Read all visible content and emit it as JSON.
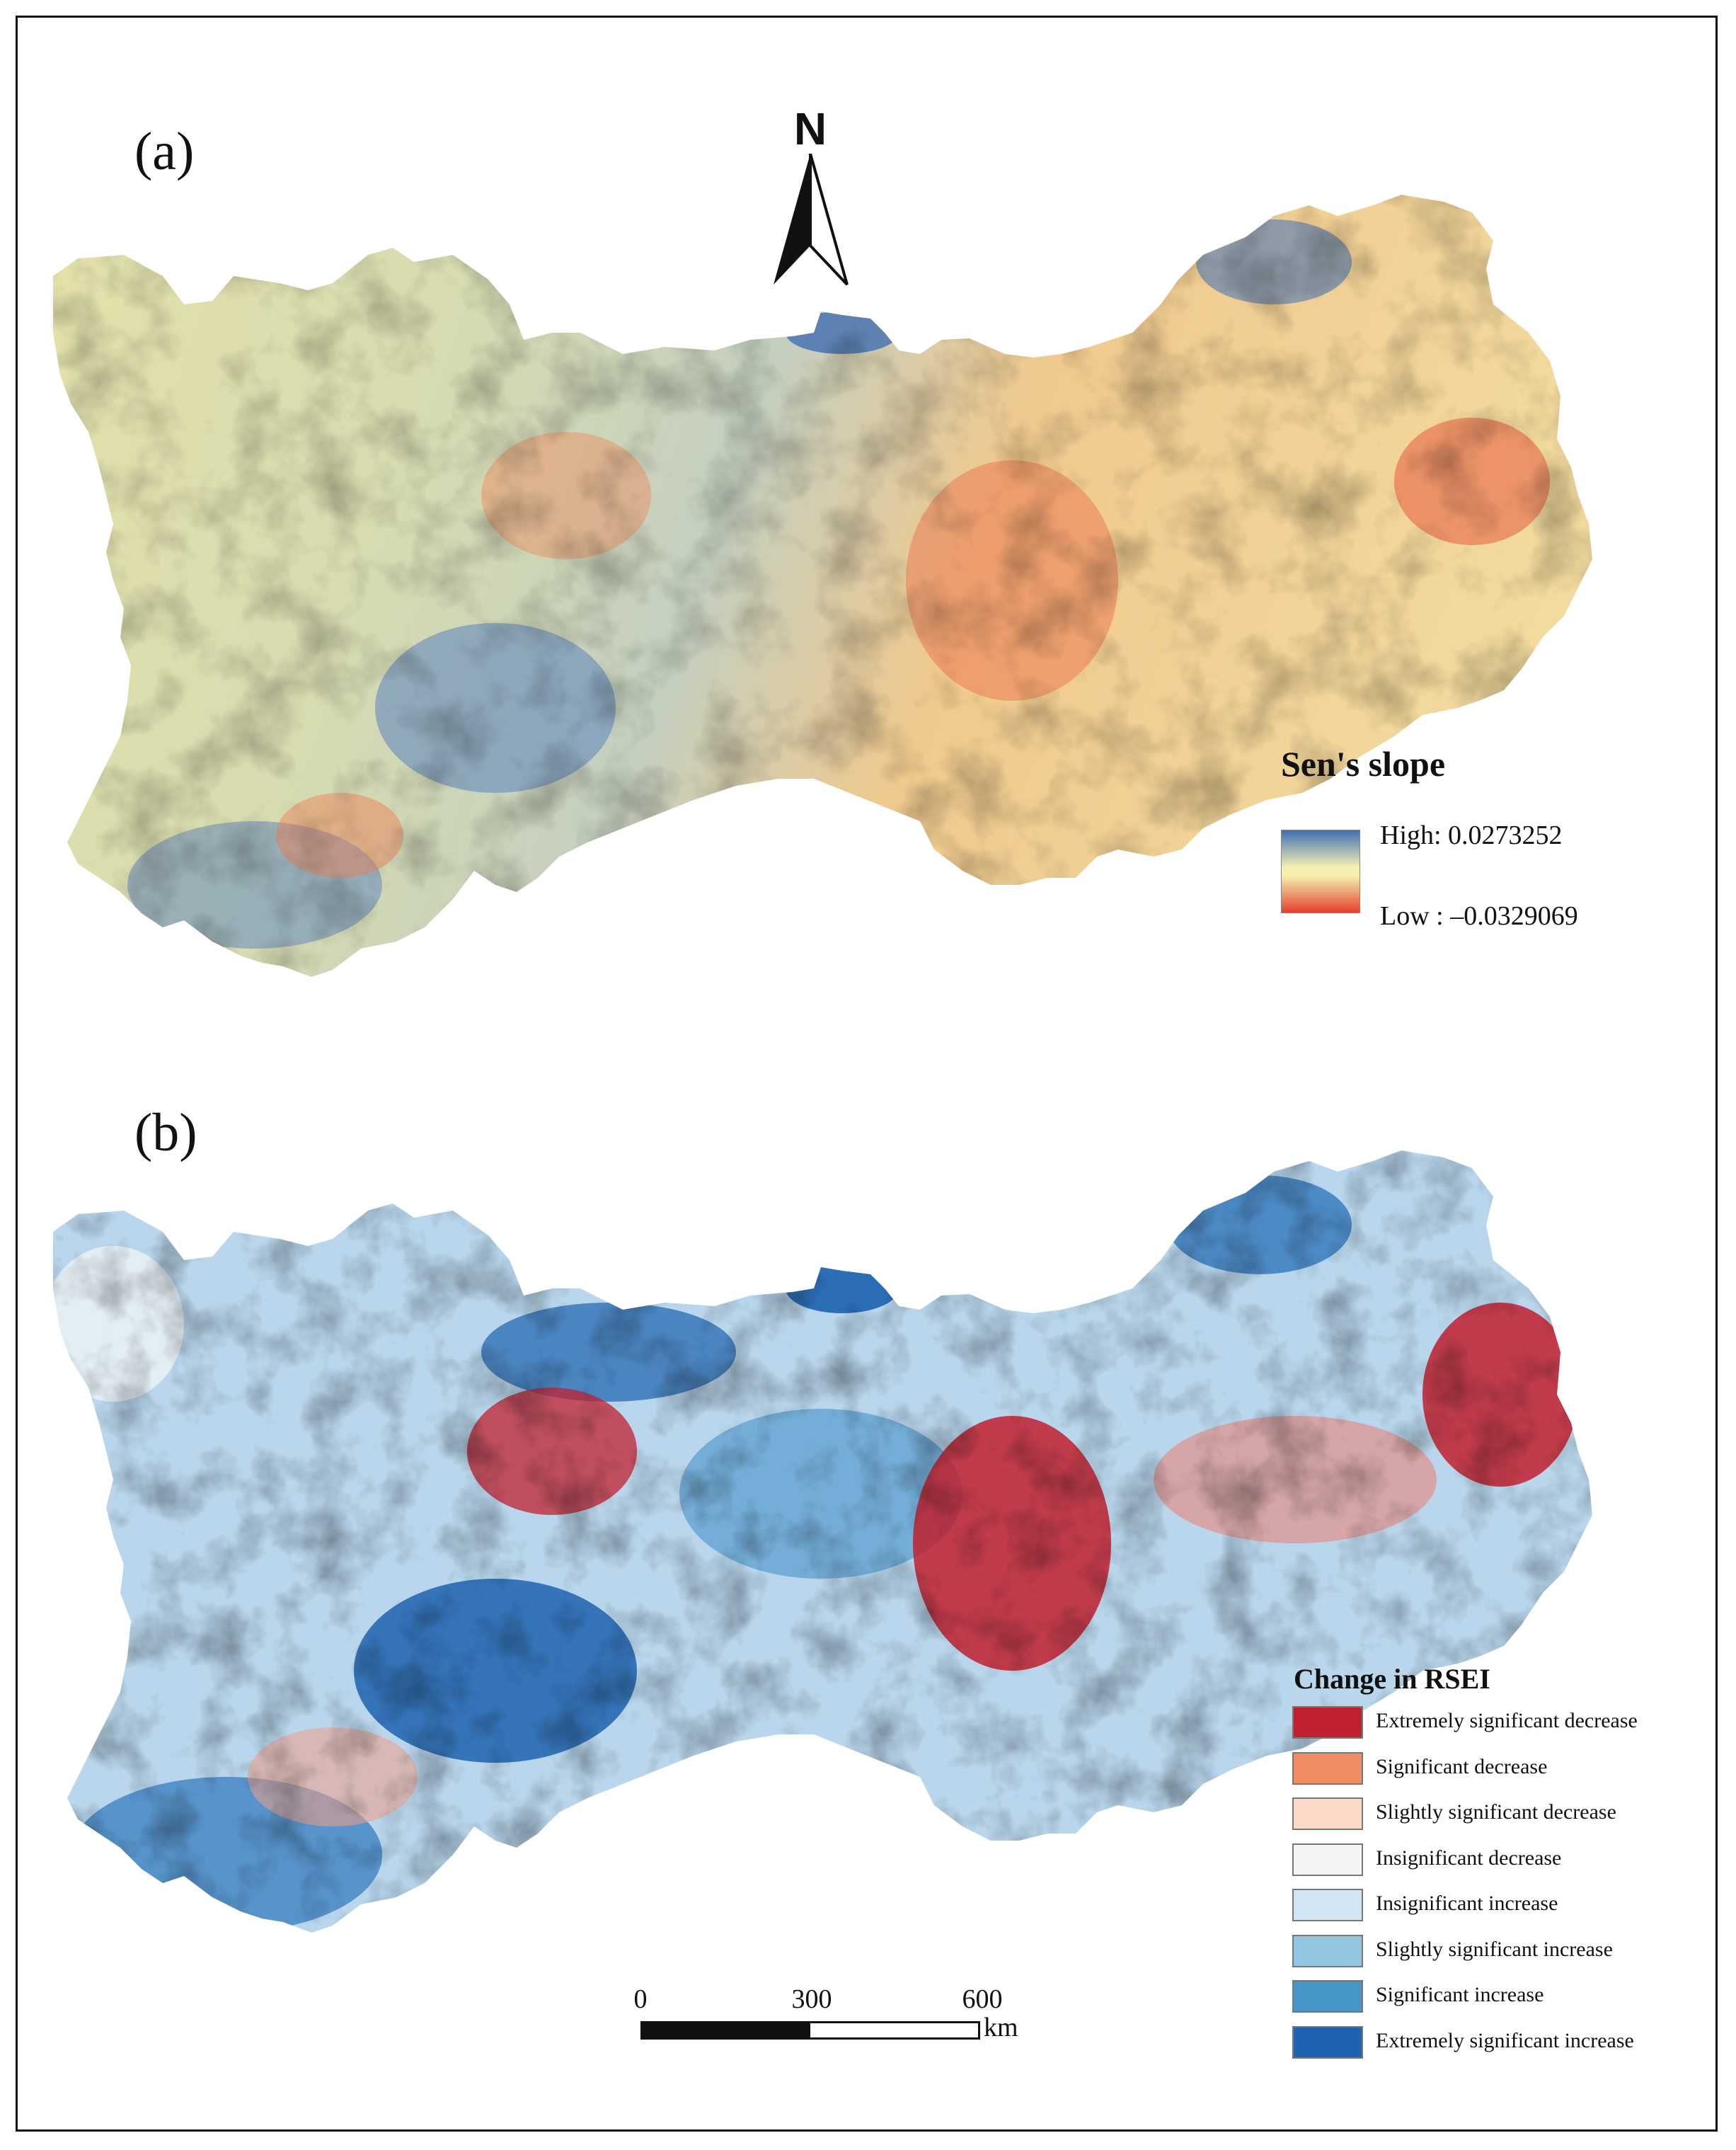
{
  "panels": {
    "a_label": "(a)",
    "b_label": "(b)"
  },
  "north_arrow": {
    "letter": "N",
    "icon": "north-arrow-icon"
  },
  "legend_a": {
    "title": "Sen's slope",
    "high_label": "High: 0.0273252",
    "low_label": "Low : –0.0329069",
    "colors": {
      "high": "#3f6fb3",
      "mid": "#f5f0b0",
      "low": "#e4402a"
    }
  },
  "legend_b": {
    "title": "Change in RSEI",
    "classes": [
      {
        "label": "Extremely significant decrease",
        "color": "#c1202f"
      },
      {
        "label": "Significant decrease",
        "color": "#f28c62"
      },
      {
        "label": "Slightly significant decrease",
        "color": "#fcd9c7"
      },
      {
        "label": "Insignificant decrease",
        "color": "#f4f4f4"
      },
      {
        "label": "Insignificant increase",
        "color": "#d2e5f2"
      },
      {
        "label": "Slightly significant increase",
        "color": "#94c6e2"
      },
      {
        "label": "Significant increase",
        "color": "#4595c9"
      },
      {
        "label": "Extremely significant increase",
        "color": "#1d63b0"
      }
    ]
  },
  "scale_bar": {
    "ticks": [
      "0",
      "300",
      "600"
    ],
    "unit": "km"
  }
}
